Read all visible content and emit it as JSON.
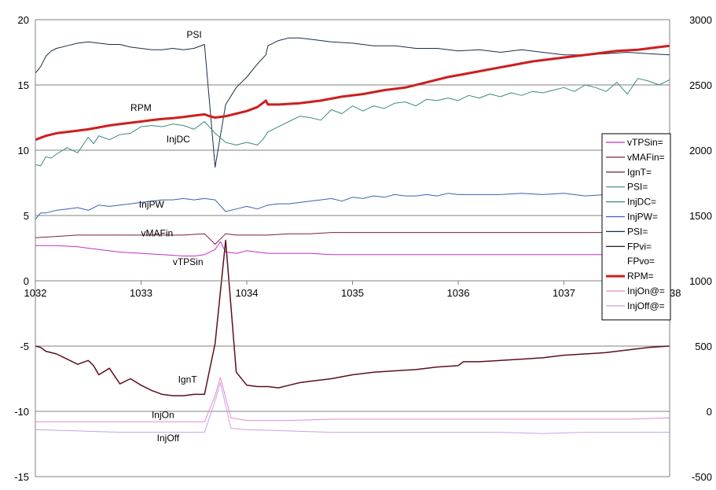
{
  "chart_data": {
    "type": "line",
    "title": "",
    "xlabel": "",
    "ylabel": "",
    "xlim": [
      1032,
      1038
    ],
    "ylim": [
      -15,
      20
    ],
    "y2lim": [
      -500,
      3000
    ],
    "x_ticks": [
      "1032",
      "1033",
      "1034",
      "1035",
      "1036",
      "1037",
      "1038"
    ],
    "y_ticks": [
      "20",
      "15",
      "10",
      "5",
      "0",
      "-5",
      "-10",
      "-15"
    ],
    "y2_ticks": [
      "3000",
      "2500",
      "2000",
      "1500",
      "1000",
      "500",
      "0",
      "-500"
    ],
    "grid": "horizontal",
    "legend_position": "right",
    "legend": [
      "vTPSin=",
      "vMAFin=",
      "IgnT=",
      "PSI=",
      "InjDC=",
      "InjPW=",
      "PSI=",
      "FPvi=",
      "FPvo=",
      "RPM=",
      "InjOn@=",
      "InjOff@="
    ],
    "annotations": [
      {
        "text": "PSI",
        "x": 1033.43,
        "y": 18.6
      },
      {
        "text": "RPM",
        "x": 1032.9,
        "y": 13.0
      },
      {
        "text": "InjDC",
        "x": 1033.24,
        "y": 10.6
      },
      {
        "text": "InjPW",
        "x": 1032.98,
        "y": 5.6
      },
      {
        "text": "vMAFin",
        "x": 1033.0,
        "y": 3.4
      },
      {
        "text": "vTPSin",
        "x": 1033.3,
        "y": 1.2
      },
      {
        "text": "IgnT",
        "x": 1033.35,
        "y": -7.8
      },
      {
        "text": "InjOn",
        "x": 1033.1,
        "y": -10.5
      },
      {
        "text": "InjOff",
        "x": 1033.15,
        "y": -12.3
      }
    ],
    "series": [
      {
        "name": "PSI",
        "color": "#1b2e45",
        "width": 1,
        "axis": "left",
        "x": [
          1032,
          1032.05,
          1032.1,
          1032.15,
          1032.2,
          1032.3,
          1032.4,
          1032.5,
          1032.6,
          1032.7,
          1032.8,
          1032.9,
          1033.0,
          1033.1,
          1033.2,
          1033.3,
          1033.4,
          1033.5,
          1033.6,
          1033.7,
          1033.8,
          1033.9,
          1034.0,
          1034.1,
          1034.18,
          1034.2,
          1034.3,
          1034.4,
          1034.5,
          1034.6,
          1034.8,
          1035.0,
          1035.2,
          1035.4,
          1035.6,
          1035.8,
          1036.0,
          1036.2,
          1036.4,
          1036.6,
          1036.8,
          1037.0,
          1037.2,
          1037.4,
          1037.6,
          1037.8,
          1038.0
        ],
        "y": [
          15.9,
          16.4,
          17.2,
          17.6,
          17.8,
          18.0,
          18.2,
          18.3,
          18.2,
          18.1,
          18.1,
          17.9,
          17.8,
          17.7,
          17.7,
          17.8,
          17.7,
          17.8,
          18.1,
          8.7,
          13.5,
          14.8,
          15.6,
          16.6,
          17.3,
          18.0,
          18.4,
          18.6,
          18.6,
          18.5,
          18.3,
          18.2,
          18.0,
          18.0,
          17.8,
          17.8,
          17.6,
          17.7,
          17.5,
          17.7,
          17.5,
          17.3,
          17.3,
          17.4,
          17.5,
          17.4,
          17.3
        ]
      },
      {
        "name": "RPM",
        "color": "#cc1f1f",
        "width": 3,
        "axis": "right",
        "x": [
          1032,
          1032.1,
          1032.2,
          1032.3,
          1032.4,
          1032.5,
          1032.6,
          1032.7,
          1032.8,
          1032.9,
          1033.0,
          1033.1,
          1033.2,
          1033.3,
          1033.4,
          1033.5,
          1033.6,
          1033.65,
          1033.7,
          1033.8,
          1033.9,
          1034.0,
          1034.1,
          1034.15,
          1034.18,
          1034.2,
          1034.3,
          1034.5,
          1034.7,
          1034.9,
          1035.1,
          1035.3,
          1035.5,
          1035.7,
          1035.9,
          1036.1,
          1036.3,
          1036.5,
          1036.7,
          1036.9,
          1037.1,
          1037.3,
          1037.5,
          1037.7,
          1037.9,
          1038.0
        ],
        "y": [
          2080,
          2110,
          2130,
          2140,
          2150,
          2160,
          2175,
          2190,
          2200,
          2210,
          2220,
          2230,
          2240,
          2245,
          2255,
          2265,
          2275,
          2260,
          2250,
          2260,
          2280,
          2300,
          2330,
          2360,
          2380,
          2350,
          2350,
          2360,
          2380,
          2410,
          2430,
          2460,
          2480,
          2520,
          2560,
          2590,
          2620,
          2650,
          2680,
          2700,
          2720,
          2740,
          2760,
          2770,
          2790,
          2800
        ]
      },
      {
        "name": "InjDC",
        "color": "#3a8a82",
        "width": 1,
        "axis": "left",
        "x": [
          1032,
          1032.05,
          1032.1,
          1032.15,
          1032.2,
          1032.3,
          1032.4,
          1032.5,
          1032.55,
          1032.6,
          1032.7,
          1032.8,
          1032.9,
          1033.0,
          1033.1,
          1033.2,
          1033.3,
          1033.4,
          1033.5,
          1033.6,
          1033.7,
          1033.8,
          1033.9,
          1034.0,
          1034.1,
          1034.15,
          1034.2,
          1034.3,
          1034.4,
          1034.5,
          1034.6,
          1034.7,
          1034.8,
          1034.9,
          1035.0,
          1035.1,
          1035.2,
          1035.3,
          1035.4,
          1035.5,
          1035.6,
          1035.7,
          1035.8,
          1035.9,
          1036.0,
          1036.1,
          1036.2,
          1036.3,
          1036.4,
          1036.5,
          1036.6,
          1036.7,
          1036.8,
          1036.9,
          1037.0,
          1037.1,
          1037.2,
          1037.3,
          1037.4,
          1037.5,
          1037.6,
          1037.7,
          1037.8,
          1037.9,
          1038.0
        ],
        "y": [
          8.9,
          8.8,
          9.5,
          9.4,
          9.7,
          10.2,
          9.8,
          11.0,
          10.5,
          11.1,
          10.8,
          11.2,
          11.3,
          11.8,
          11.9,
          11.8,
          12.0,
          11.9,
          11.6,
          12.2,
          11.3,
          10.6,
          10.4,
          10.6,
          10.4,
          10.8,
          11.4,
          11.8,
          12.2,
          12.6,
          12.5,
          12.3,
          13.1,
          12.8,
          13.4,
          13.0,
          13.4,
          13.2,
          13.6,
          13.7,
          13.4,
          13.9,
          13.8,
          14.0,
          13.8,
          14.2,
          14.0,
          14.3,
          14.1,
          14.4,
          14.2,
          14.5,
          14.4,
          14.6,
          14.8,
          14.5,
          15.0,
          14.8,
          14.5,
          15.2,
          14.3,
          15.5,
          15.3,
          15.0,
          15.4
        ]
      },
      {
        "name": "InjPW",
        "color": "#3a62b0",
        "width": 1,
        "axis": "left",
        "x": [
          1032,
          1032.05,
          1032.1,
          1032.2,
          1032.3,
          1032.4,
          1032.5,
          1032.6,
          1032.7,
          1032.8,
          1032.9,
          1033.0,
          1033.1,
          1033.2,
          1033.3,
          1033.4,
          1033.5,
          1033.6,
          1033.7,
          1033.8,
          1033.9,
          1034.0,
          1034.1,
          1034.2,
          1034.3,
          1034.4,
          1034.5,
          1034.6,
          1034.7,
          1034.8,
          1034.9,
          1035.0,
          1035.1,
          1035.2,
          1035.3,
          1035.4,
          1035.5,
          1035.6,
          1035.7,
          1035.8,
          1035.9,
          1036.0,
          1036.2,
          1036.4,
          1036.6,
          1036.8,
          1037.0,
          1037.2,
          1037.4,
          1037.6,
          1037.8,
          1038.0
        ],
        "y": [
          4.7,
          5.2,
          5.2,
          5.4,
          5.5,
          5.6,
          5.4,
          5.8,
          5.7,
          5.8,
          5.9,
          6.0,
          6.1,
          6.2,
          6.2,
          6.3,
          6.2,
          6.3,
          6.2,
          5.3,
          5.5,
          5.7,
          5.5,
          5.8,
          5.9,
          5.9,
          6.0,
          6.1,
          6.2,
          6.3,
          6.1,
          6.4,
          6.3,
          6.5,
          6.4,
          6.6,
          6.5,
          6.5,
          6.6,
          6.5,
          6.7,
          6.6,
          6.6,
          6.6,
          6.7,
          6.6,
          6.7,
          6.5,
          6.6,
          6.6,
          6.4,
          6.5
        ]
      },
      {
        "name": "vMAFin",
        "color": "#7a1f4a",
        "width": 1,
        "axis": "left",
        "x": [
          1032,
          1032.2,
          1032.4,
          1032.6,
          1032.8,
          1033.0,
          1033.2,
          1033.4,
          1033.6,
          1033.7,
          1033.8,
          1033.9,
          1034.0,
          1034.2,
          1034.4,
          1034.6,
          1034.8,
          1035.0,
          1035.2,
          1035.4,
          1035.6,
          1035.8,
          1036.0,
          1036.2,
          1036.4,
          1036.6,
          1036.8,
          1037.0,
          1037.2,
          1037.4,
          1037.6,
          1037.8,
          1038.0
        ],
        "y": [
          3.3,
          3.4,
          3.5,
          3.5,
          3.5,
          3.5,
          3.5,
          3.5,
          3.6,
          2.8,
          3.6,
          3.5,
          3.5,
          3.5,
          3.6,
          3.6,
          3.7,
          3.7,
          3.7,
          3.7,
          3.7,
          3.7,
          3.7,
          3.7,
          3.7,
          3.7,
          3.7,
          3.7,
          3.7,
          3.7,
          3.7,
          3.7,
          3.7
        ]
      },
      {
        "name": "vTPSin",
        "color": "#c030c8",
        "width": 1,
        "axis": "left",
        "x": [
          1032,
          1032.2,
          1032.4,
          1032.6,
          1032.8,
          1033.0,
          1033.2,
          1033.4,
          1033.5,
          1033.6,
          1033.7,
          1033.75,
          1033.8,
          1033.9,
          1034.0,
          1034.2,
          1034.4,
          1034.6,
          1034.8,
          1035.0,
          1035.2,
          1035.4,
          1035.6,
          1035.8,
          1036.0,
          1036.2,
          1036.4,
          1036.6,
          1036.8,
          1037.0,
          1037.2,
          1037.4,
          1037.6,
          1037.8,
          1038.0
        ],
        "y": [
          2.7,
          2.7,
          2.6,
          2.4,
          2.2,
          2.1,
          2.0,
          1.9,
          1.9,
          2.0,
          2.4,
          3.0,
          2.2,
          2.1,
          2.3,
          2.1,
          2.1,
          2.1,
          2.0,
          2.0,
          2.0,
          2.0,
          2.0,
          2.0,
          2.0,
          2.0,
          2.0,
          2.0,
          2.0,
          2.0,
          2.0,
          2.0,
          2.0,
          2.0,
          2.0
        ]
      },
      {
        "name": "IgnT",
        "color": "#5c0f1c",
        "width": 1.5,
        "axis": "left",
        "x": [
          1032,
          1032.05,
          1032.1,
          1032.2,
          1032.3,
          1032.4,
          1032.5,
          1032.55,
          1032.6,
          1032.7,
          1032.75,
          1032.8,
          1032.9,
          1033.0,
          1033.1,
          1033.2,
          1033.3,
          1033.4,
          1033.5,
          1033.6,
          1033.7,
          1033.8,
          1033.9,
          1034.0,
          1034.1,
          1034.2,
          1034.3,
          1034.4,
          1034.5,
          1034.6,
          1034.8,
          1035.0,
          1035.2,
          1035.4,
          1035.6,
          1035.8,
          1036.0,
          1036.05,
          1036.2,
          1036.4,
          1036.6,
          1036.8,
          1037.0,
          1037.2,
          1037.4,
          1037.6,
          1037.8,
          1038.0
        ],
        "y": [
          -5.0,
          -5.1,
          -5.4,
          -5.6,
          -6.0,
          -6.4,
          -6.1,
          -6.5,
          -7.2,
          -6.7,
          -7.3,
          -7.9,
          -7.5,
          -8.0,
          -8.4,
          -8.7,
          -8.8,
          -8.8,
          -8.7,
          -8.7,
          -4.8,
          3.1,
          -7.0,
          -8.0,
          -8.1,
          -8.1,
          -8.2,
          -8.0,
          -7.8,
          -7.7,
          -7.5,
          -7.2,
          -7.0,
          -6.9,
          -6.8,
          -6.6,
          -6.5,
          -6.2,
          -6.2,
          -6.1,
          -6.0,
          -5.9,
          -5.7,
          -5.6,
          -5.5,
          -5.3,
          -5.1,
          -5.0
        ]
      },
      {
        "name": "InjOn",
        "color": "#e889cc",
        "width": 1,
        "axis": "left",
        "x": [
          1032,
          1032.4,
          1032.8,
          1033.2,
          1033.4,
          1033.6,
          1033.7,
          1033.75,
          1033.85,
          1034.0,
          1034.4,
          1034.8,
          1035.2,
          1035.6,
          1036.0,
          1036.4,
          1036.8,
          1037.2,
          1037.6,
          1038.0
        ],
        "y": [
          -10.8,
          -10.8,
          -10.8,
          -10.8,
          -10.8,
          -10.8,
          -8.8,
          -7.4,
          -10.5,
          -10.7,
          -10.7,
          -10.6,
          -10.6,
          -10.6,
          -10.6,
          -10.6,
          -10.6,
          -10.6,
          -10.6,
          -10.5
        ]
      },
      {
        "name": "InjOff",
        "color": "#c8a2e6",
        "width": 1,
        "axis": "left",
        "x": [
          1032,
          1032.4,
          1032.8,
          1033.2,
          1033.4,
          1033.6,
          1033.7,
          1033.75,
          1033.85,
          1034.0,
          1034.4,
          1034.8,
          1035.2,
          1035.6,
          1036.0,
          1036.4,
          1036.8,
          1037.2,
          1037.6,
          1038.0
        ],
        "y": [
          -11.4,
          -11.5,
          -11.6,
          -11.6,
          -11.6,
          -11.6,
          -9.2,
          -7.8,
          -11.3,
          -11.4,
          -11.5,
          -11.6,
          -11.6,
          -11.6,
          -11.6,
          -11.6,
          -11.7,
          -11.6,
          -11.6,
          -11.6
        ]
      }
    ],
    "legend_colors": [
      "#c030c8",
      "#7a1f4a",
      "#5c0f1c",
      "#3a8a82",
      "#3a8a82",
      "#3a62b0",
      "#1b2e45",
      "#000000",
      "#ffffff",
      "#cc1f1f",
      "#e889cc",
      "#c8a2e6"
    ]
  }
}
